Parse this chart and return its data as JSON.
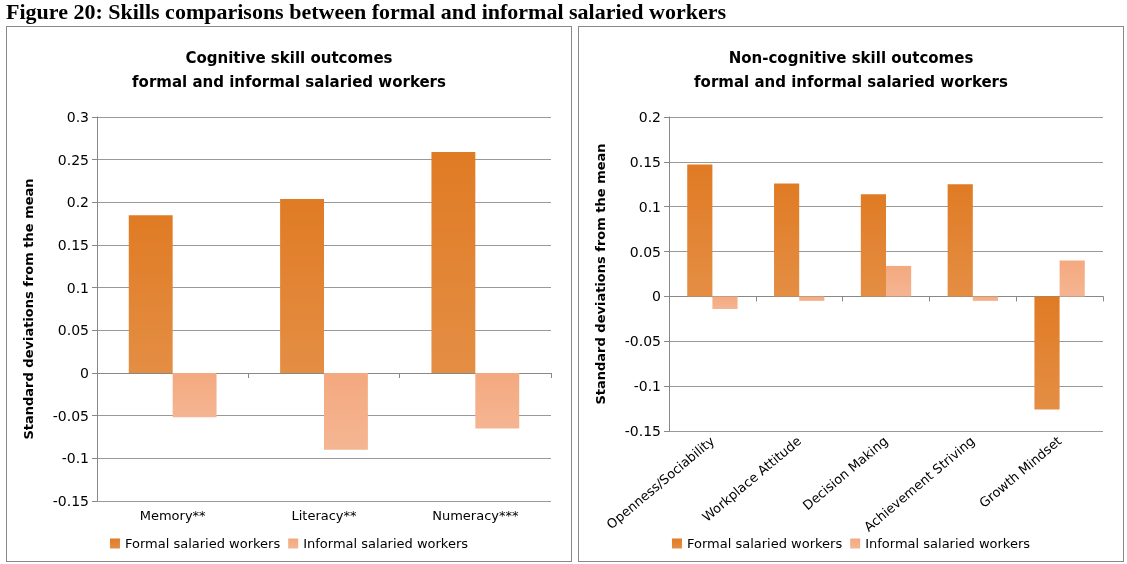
{
  "chart_data": [
    {
      "type": "bar",
      "title": "Cognitive skill outcomes\nformal and informal salaried workers",
      "ylabel": "Standard deviations from the mean",
      "annotations": [
        "Figure 20:  Skills comparisons between formal and informal salaried workers"
      ],
      "categories": [
        "Memory**",
        "Literacy**",
        "Numeracy***"
      ],
      "series": [
        {
          "name": "Formal salaried workers",
          "color": "#e07b24",
          "values": [
            0.185,
            0.204,
            0.259
          ]
        },
        {
          "name": "Informal salaried workers",
          "color": "#f4a97f",
          "values": [
            -0.052,
            -0.09,
            -0.065
          ]
        }
      ],
      "ylim": [
        -0.15,
        0.3
      ],
      "yticks": [
        -0.15,
        -0.1,
        -0.05,
        0,
        0.05,
        0.1,
        0.15,
        0.2,
        0.25,
        0.3
      ],
      "grid": "y",
      "legend": "bottom"
    },
    {
      "type": "bar",
      "title": "Non-cognitive skill outcomes\nformal and informal salaried workers",
      "ylabel": "Standard deviations from the mean",
      "categories": [
        "Openness/Sociability",
        "Workplace Attitude",
        "Decision Making",
        "Achievement Striving",
        "Growth Mindset"
      ],
      "series": [
        {
          "name": "Formal salaried workers",
          "color": "#e07b24",
          "values": [
            0.147,
            0.126,
            0.114,
            0.125,
            -0.126
          ]
        },
        {
          "name": "Informal salaried workers",
          "color": "#f4a97f",
          "values": [
            -0.014,
            -0.005,
            0.034,
            -0.005,
            0.04
          ]
        }
      ],
      "ylim": [
        -0.15,
        0.2
      ],
      "yticks": [
        -0.15,
        -0.1,
        -0.05,
        0,
        0.05,
        0.1,
        0.15,
        0.2
      ],
      "grid": "y",
      "legend": "bottom"
    }
  ]
}
